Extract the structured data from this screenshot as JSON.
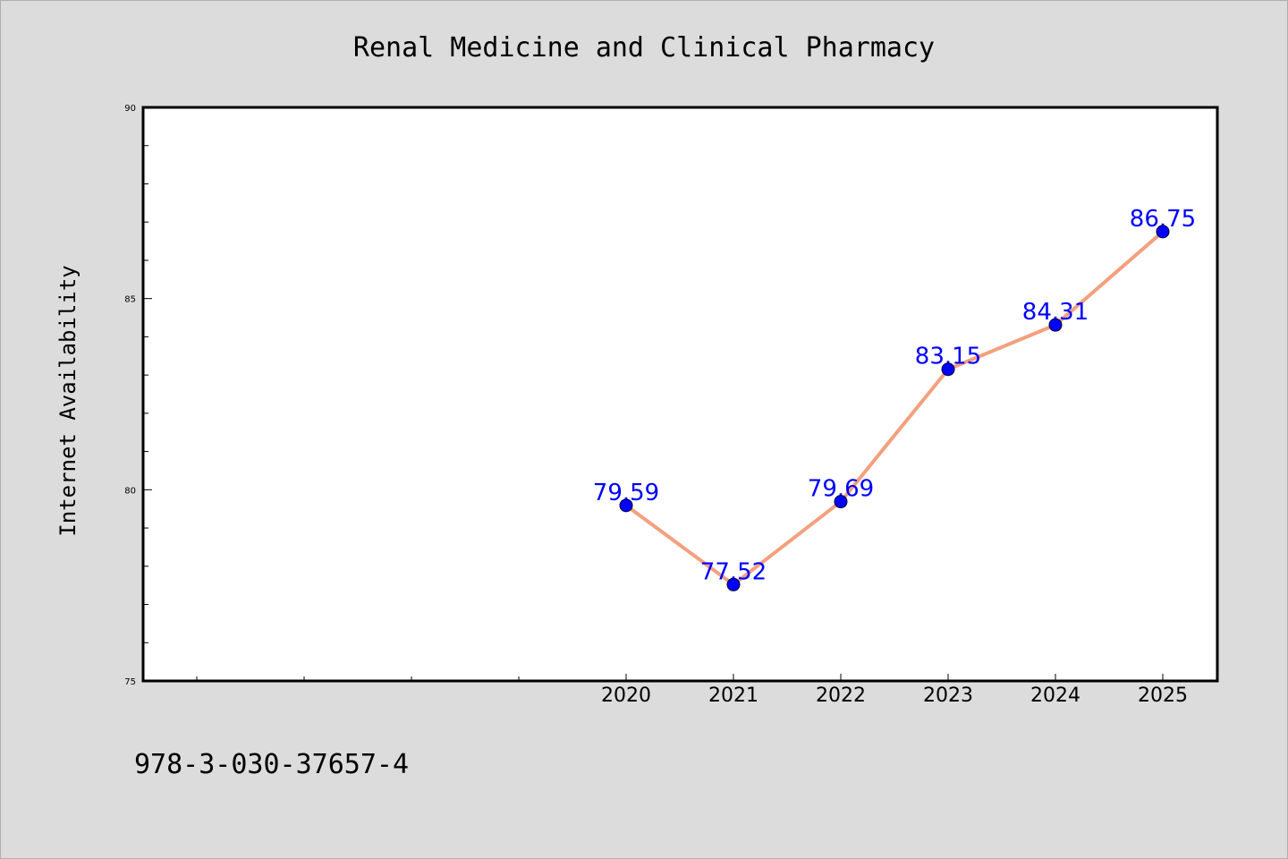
{
  "chart_data": {
    "type": "line",
    "title": "Renal Medicine and Clinical Pharmacy",
    "xlabel": "",
    "ylabel": "Internet Availability",
    "x": [
      "2020",
      "2021",
      "2022",
      "2023",
      "2024",
      "2025"
    ],
    "values": [
      79.59,
      77.52,
      79.69,
      83.15,
      84.31,
      86.75
    ],
    "data_labels": [
      "79.59",
      "77.52",
      "79.69",
      "83.15",
      "84.31",
      "86.75"
    ],
    "ylim": [
      75,
      90
    ],
    "yticks": [
      75,
      80,
      85,
      90
    ],
    "ytick_labels": [
      "75",
      "80",
      "85",
      "90"
    ],
    "grid": false,
    "line_color": "#f4a07e",
    "marker_color": "#0000ff",
    "label_color": "#0000ff"
  },
  "footer": {
    "code": "978-3-030-37657-4"
  }
}
